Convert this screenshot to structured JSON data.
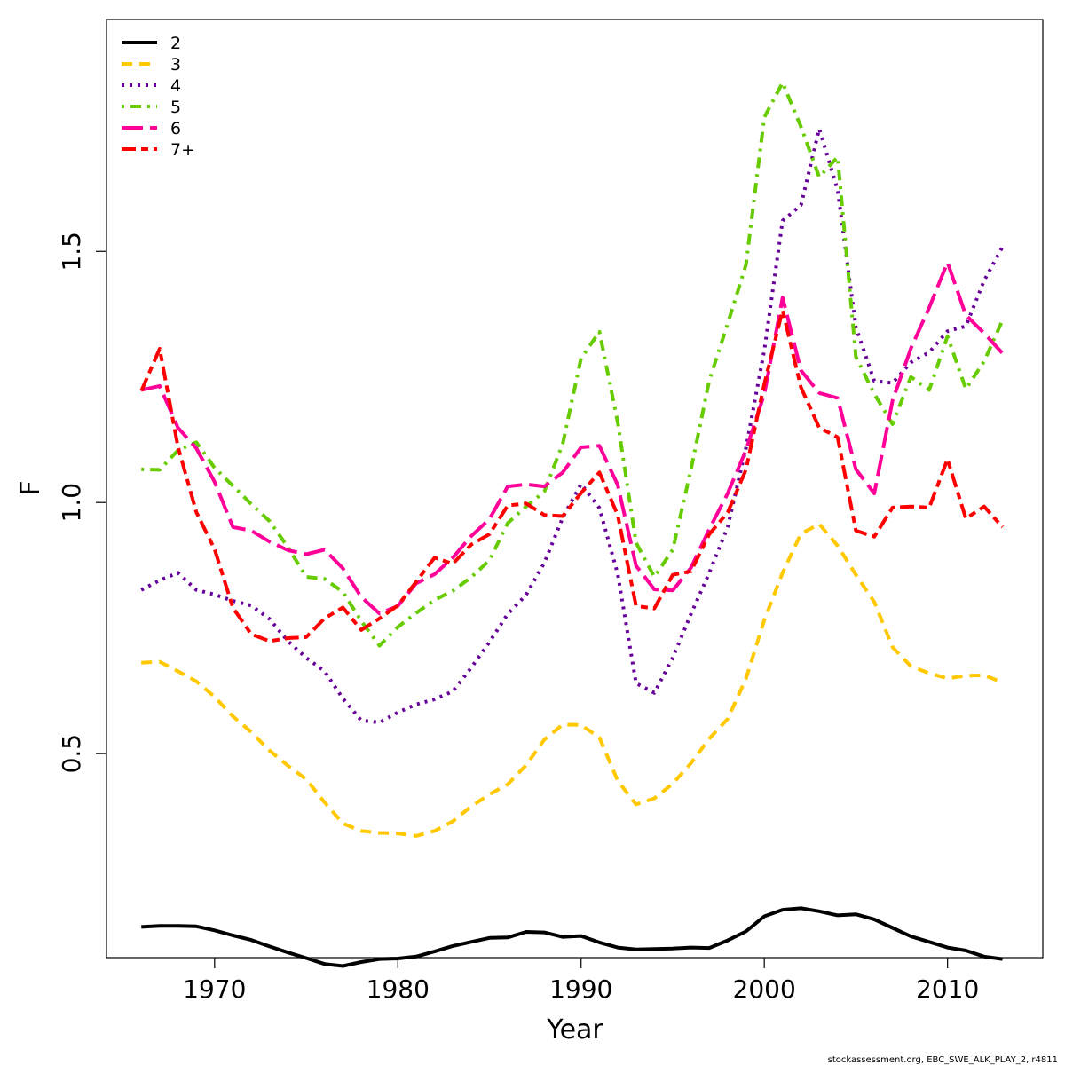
{
  "chart_data": {
    "type": "line",
    "xlabel": "Year",
    "ylabel": "F",
    "xlim": [
      1964.1,
      2015.2
    ],
    "ylim": [
      0.0938,
      1.9617
    ],
    "xticks": [
      1970,
      1980,
      1990,
      2000,
      2010
    ],
    "yticks": [
      0.5,
      1.0,
      1.5
    ],
    "ytick_labels": [
      "0.5",
      "1.0",
      "1.5"
    ],
    "x": [
      1966,
      1967,
      1968,
      1969,
      1970,
      1971,
      1972,
      1973,
      1974,
      1975,
      1976,
      1977,
      1978,
      1979,
      1980,
      1981,
      1982,
      1983,
      1984,
      1985,
      1986,
      1987,
      1988,
      1989,
      1990,
      1991,
      1992,
      1993,
      1994,
      1995,
      1996,
      1997,
      1998,
      1999,
      2000,
      2001,
      2002,
      2003,
      2004,
      2005,
      2006,
      2007,
      2008,
      2009,
      2010,
      2011,
      2012,
      2013
    ],
    "legend_position": "top-left",
    "grid": false,
    "series": [
      {
        "name": "2",
        "color": "#000000",
        "dash": "solid",
        "values": [
          0.155,
          0.157,
          0.157,
          0.156,
          0.148,
          0.138,
          0.129,
          0.116,
          0.104,
          0.093,
          0.081,
          0.077,
          0.085,
          0.091,
          0.092,
          0.096,
          0.106,
          0.117,
          0.125,
          0.133,
          0.134,
          0.145,
          0.144,
          0.135,
          0.137,
          0.124,
          0.114,
          0.11,
          0.111,
          0.112,
          0.114,
          0.113,
          0.128,
          0.146,
          0.176,
          0.189,
          0.192,
          0.186,
          0.178,
          0.18,
          0.17,
          0.153,
          0.136,
          0.125,
          0.114,
          0.108,
          0.096,
          0.091
        ]
      },
      {
        "name": "3",
        "color": "#FFC800",
        "dash": "dashed",
        "values": [
          0.681,
          0.683,
          0.664,
          0.644,
          0.613,
          0.574,
          0.543,
          0.506,
          0.476,
          0.449,
          0.403,
          0.361,
          0.346,
          0.342,
          0.341,
          0.336,
          0.346,
          0.365,
          0.395,
          0.419,
          0.439,
          0.477,
          0.528,
          0.558,
          0.557,
          0.532,
          0.446,
          0.399,
          0.411,
          0.44,
          0.481,
          0.53,
          0.569,
          0.649,
          0.766,
          0.86,
          0.938,
          0.957,
          0.914,
          0.856,
          0.802,
          0.712,
          0.674,
          0.66,
          0.65,
          0.655,
          0.656,
          0.642
        ]
      },
      {
        "name": "4",
        "color": "#660099",
        "dash": "dotted",
        "values": [
          0.826,
          0.845,
          0.86,
          0.826,
          0.817,
          0.804,
          0.795,
          0.768,
          0.724,
          0.691,
          0.664,
          0.61,
          0.566,
          0.562,
          0.582,
          0.598,
          0.608,
          0.624,
          0.671,
          0.722,
          0.778,
          0.816,
          0.88,
          0.97,
          1.037,
          0.989,
          0.858,
          0.64,
          0.621,
          0.691,
          0.778,
          0.86,
          0.951,
          1.108,
          1.303,
          1.561,
          1.592,
          1.744,
          1.623,
          1.349,
          1.242,
          1.238,
          1.279,
          1.299,
          1.341,
          1.351,
          1.442,
          1.509
        ]
      },
      {
        "name": "5",
        "color": "#66CC00",
        "dash": "dotdash",
        "values": [
          1.066,
          1.065,
          1.104,
          1.12,
          1.069,
          1.033,
          0.997,
          0.963,
          0.911,
          0.852,
          0.848,
          0.822,
          0.764,
          0.715,
          0.752,
          0.78,
          0.806,
          0.824,
          0.851,
          0.885,
          0.959,
          0.992,
          1.022,
          1.117,
          1.287,
          1.34,
          1.16,
          0.92,
          0.852,
          0.906,
          1.066,
          1.243,
          1.356,
          1.473,
          1.767,
          1.836,
          1.748,
          1.648,
          1.688,
          1.29,
          1.216,
          1.156,
          1.25,
          1.224,
          1.331,
          1.226,
          1.281,
          1.363
        ]
      },
      {
        "name": "6",
        "color": "#FF0099",
        "dash": "longdash",
        "values": [
          1.224,
          1.232,
          1.149,
          1.108,
          1.041,
          0.951,
          0.944,
          0.922,
          0.905,
          0.897,
          0.906,
          0.869,
          0.812,
          0.779,
          0.794,
          0.839,
          0.857,
          0.89,
          0.933,
          0.967,
          1.032,
          1.036,
          1.032,
          1.06,
          1.11,
          1.113,
          1.035,
          0.874,
          0.827,
          0.825,
          0.87,
          0.947,
          1.018,
          1.104,
          1.216,
          1.408,
          1.263,
          1.218,
          1.208,
          1.066,
          1.018,
          1.203,
          1.307,
          1.388,
          1.478,
          1.373,
          1.337,
          1.297
        ]
      },
      {
        "name": "7+",
        "color": "#FF0000",
        "dash": "twodash",
        "values": [
          1.222,
          1.306,
          1.111,
          0.981,
          0.907,
          0.79,
          0.738,
          0.724,
          0.73,
          0.732,
          0.769,
          0.791,
          0.746,
          0.769,
          0.795,
          0.842,
          0.89,
          0.878,
          0.916,
          0.937,
          0.994,
          0.998,
          0.975,
          0.973,
          1.019,
          1.06,
          0.975,
          0.794,
          0.789,
          0.856,
          0.863,
          0.937,
          0.98,
          1.065,
          1.236,
          1.383,
          1.229,
          1.149,
          1.13,
          0.944,
          0.932,
          0.99,
          0.992,
          0.99,
          1.086,
          0.968,
          0.992,
          0.951
        ]
      }
    ]
  },
  "footer_text": "stockassessment.org, EBC_SWE_ALK_PLAY_2, r4811"
}
